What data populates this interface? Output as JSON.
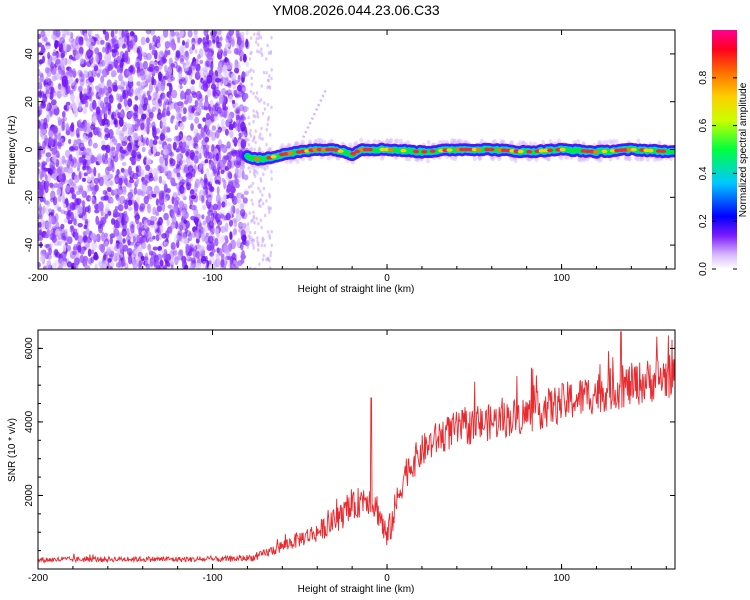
{
  "figure_title": "YM08.2026.044.23.06.C33",
  "colors": {
    "spectrogram_dots": "#7a1bff",
    "ridge_core": "#ff2040",
    "snr_line": "#e8292e",
    "axis": "#000000"
  },
  "chart_data": [
    {
      "type": "heatmap",
      "title": "",
      "xlabel": "Height of straight line (km)",
      "ylabel": "Frequency (Hz)",
      "xlim": [
        -200,
        165
      ],
      "ylim": [
        -50,
        50
      ],
      "x_ticks": [
        -200,
        -100,
        0,
        100
      ],
      "x_tick_labels": [
        "-200",
        "-100",
        "0",
        "100"
      ],
      "y_ticks": [
        -40,
        -20,
        0,
        20,
        40
      ],
      "y_tick_labels": [
        "-40",
        "-20",
        "0",
        "20",
        "40"
      ],
      "noise_region_x": [
        -200,
        -80
      ],
      "ridge_track": [
        {
          "x": -80,
          "y": -3
        },
        {
          "x": -75,
          "y": -4
        },
        {
          "x": -70,
          "y": -4
        },
        {
          "x": -60,
          "y": -2
        },
        {
          "x": -50,
          "y": -1
        },
        {
          "x": -40,
          "y": 0
        },
        {
          "x": -30,
          "y": 0
        },
        {
          "x": -20,
          "y": -2
        },
        {
          "x": -15,
          "y": 0
        },
        {
          "x": 0,
          "y": 0
        },
        {
          "x": 20,
          "y": -1
        },
        {
          "x": 40,
          "y": 0
        },
        {
          "x": 60,
          "y": 0
        },
        {
          "x": 80,
          "y": -1
        },
        {
          "x": 100,
          "y": 0
        },
        {
          "x": 120,
          "y": -1
        },
        {
          "x": 140,
          "y": 0
        },
        {
          "x": 165,
          "y": -1
        }
      ],
      "colorbar": {
        "label": "Normalized spectral amplitude",
        "range": [
          0,
          1
        ],
        "ticks": [
          0.0,
          0.2,
          0.4,
          0.6,
          0.8
        ],
        "tick_labels": [
          "0.0",
          "0.2",
          "0.4",
          "0.6",
          "0.8"
        ],
        "colormap": "rainbow (white-purple-blue-cyan-green-yellow-red-magenta)"
      }
    },
    {
      "type": "line",
      "title": "",
      "xlabel": "Height of straight line (km)",
      "ylabel": "SNR (10 * v/v)",
      "xlim": [
        -200,
        165
      ],
      "ylim": [
        0,
        6500
      ],
      "x_ticks": [
        -200,
        -100,
        0,
        100
      ],
      "x_tick_labels": [
        "-200",
        "-100",
        "0",
        "100"
      ],
      "y_ticks": [
        2000,
        4000,
        6000
      ],
      "y_tick_labels": [
        "2000",
        "4000",
        "6000"
      ],
      "series": [
        {
          "name": "SNR",
          "color": "#e8292e",
          "trend_x": [
            -200,
            -150,
            -100,
            -85,
            -75,
            -65,
            -50,
            -40,
            -30,
            -20,
            -12,
            -5,
            0,
            5,
            10,
            20,
            30,
            40,
            60,
            80,
            100,
            120,
            140,
            165
          ],
          "trend_y": [
            250,
            270,
            260,
            280,
            320,
            520,
            820,
            1000,
            1300,
            1650,
            2000,
            1600,
            800,
            1700,
            2600,
            3200,
            3600,
            3800,
            4000,
            4200,
            4500,
            4800,
            5000,
            5300
          ],
          "noise_amplitude": [
            150,
            150,
            150,
            160,
            200,
            300,
            450,
            550,
            650,
            800,
            900,
            900,
            900,
            900,
            900,
            900,
            950,
            1000,
            1000,
            1050,
            1100,
            1150,
            1200,
            1250
          ],
          "peaks": [
            {
              "x": -9,
              "y": 4650
            },
            {
              "x": 134,
              "y": 6450
            }
          ]
        }
      ]
    }
  ]
}
